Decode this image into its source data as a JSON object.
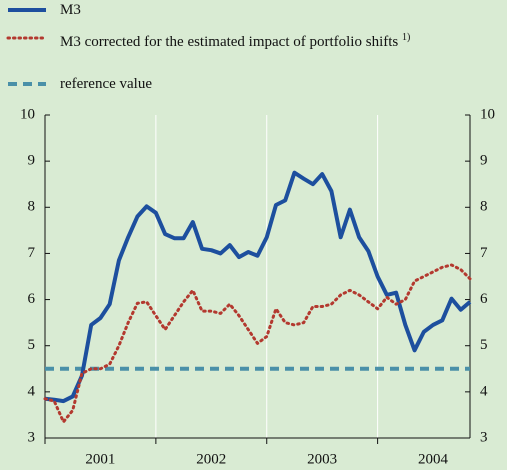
{
  "chart_data": {
    "type": "line",
    "series": [
      {
        "name": "M3",
        "color": "#1d4f9e",
        "style": "solid",
        "values": [
          3.85,
          3.83,
          3.8,
          3.9,
          4.35,
          5.45,
          5.6,
          5.9,
          6.85,
          7.35,
          7.8,
          8.02,
          7.88,
          7.42,
          7.33,
          7.33,
          7.68,
          7.1,
          7.07,
          7.0,
          7.18,
          6.92,
          7.03,
          6.95,
          7.35,
          8.05,
          8.15,
          8.75,
          8.62,
          8.5,
          8.72,
          8.35,
          7.35,
          7.95,
          7.35,
          7.05,
          6.5,
          6.1,
          6.15,
          5.45,
          4.9,
          5.3,
          5.45,
          5.55,
          6.02,
          5.78,
          5.95
        ]
      },
      {
        "name": "M3 corrected for the estimated impact of portfolio shifts",
        "note": "1)",
        "color": "#b3392f",
        "style": "dotted",
        "values": [
          3.85,
          3.8,
          3.35,
          3.6,
          4.4,
          4.5,
          4.5,
          4.6,
          5.0,
          5.5,
          5.92,
          5.95,
          5.65,
          5.35,
          5.65,
          5.95,
          6.2,
          5.75,
          5.75,
          5.7,
          5.9,
          5.65,
          5.35,
          5.05,
          5.2,
          5.8,
          5.5,
          5.45,
          5.5,
          5.85,
          5.85,
          5.9,
          6.1,
          6.2,
          6.1,
          5.95,
          5.8,
          6.05,
          5.9,
          6.0,
          6.4,
          6.5,
          6.6,
          6.7,
          6.75,
          6.65,
          6.45
        ]
      }
    ],
    "reference": {
      "name": "reference value",
      "value": 4.5,
      "color": "#4a90a8"
    },
    "xlim": [
      0,
      46
    ],
    "xticks": [
      {
        "value": 6,
        "label": "2001"
      },
      {
        "value": 18,
        "label": "2002"
      },
      {
        "value": 30,
        "label": "2003"
      },
      {
        "value": 42,
        "label": "2004"
      }
    ],
    "xgrid": [
      0,
      12,
      24,
      36
    ],
    "ylim": [
      3,
      10
    ],
    "yticks": [
      3,
      4,
      5,
      6,
      7,
      8,
      9,
      10
    ],
    "grid": true
  }
}
